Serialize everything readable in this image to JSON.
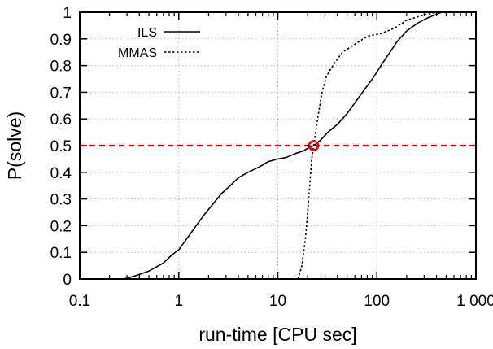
{
  "chart_data": {
    "type": "line",
    "title": "",
    "xlabel": "run-time [CPU sec]",
    "ylabel": "P(solve)",
    "x_scale": "log",
    "xlim": [
      0.1,
      1000
    ],
    "ylim": [
      0,
      1
    ],
    "grid": true,
    "legend_position": "top-left",
    "x_ticks": [
      {
        "value": 0.1,
        "label": "0.1"
      },
      {
        "value": 1,
        "label": "1"
      },
      {
        "value": 10,
        "label": "10"
      },
      {
        "value": 100,
        "label": "100"
      },
      {
        "value": 1000,
        "label": "1 000"
      }
    ],
    "y_ticks": [
      {
        "value": 0,
        "label": "0"
      },
      {
        "value": 0.1,
        "label": "0.1"
      },
      {
        "value": 0.2,
        "label": "0.2"
      },
      {
        "value": 0.3,
        "label": "0.3"
      },
      {
        "value": 0.4,
        "label": "0.4"
      },
      {
        "value": 0.5,
        "label": "0.5"
      },
      {
        "value": 0.6,
        "label": "0.6"
      },
      {
        "value": 0.7,
        "label": "0.7"
      },
      {
        "value": 0.8,
        "label": "0.8"
      },
      {
        "value": 0.9,
        "label": "0.9"
      },
      {
        "value": 1,
        "label": "1"
      }
    ],
    "series": [
      {
        "name": "ILS",
        "style": "solid",
        "color": "#000000",
        "points": [
          [
            0.28,
            0
          ],
          [
            0.35,
            0.01
          ],
          [
            0.5,
            0.03
          ],
          [
            0.7,
            0.06
          ],
          [
            0.85,
            0.09
          ],
          [
            1.0,
            0.11
          ],
          [
            1.2,
            0.15
          ],
          [
            1.5,
            0.2
          ],
          [
            1.8,
            0.24
          ],
          [
            2.2,
            0.28
          ],
          [
            2.7,
            0.32
          ],
          [
            3.3,
            0.35
          ],
          [
            4.0,
            0.38
          ],
          [
            5.0,
            0.4
          ],
          [
            6.5,
            0.42
          ],
          [
            8.0,
            0.44
          ],
          [
            10.0,
            0.45
          ],
          [
            12.0,
            0.455
          ],
          [
            15.0,
            0.47
          ],
          [
            18.0,
            0.48
          ],
          [
            20.0,
            0.49
          ],
          [
            23.0,
            0.5
          ],
          [
            27.0,
            0.52
          ],
          [
            32.0,
            0.55
          ],
          [
            40.0,
            0.58
          ],
          [
            50.0,
            0.62
          ],
          [
            60.0,
            0.66
          ],
          [
            75.0,
            0.71
          ],
          [
            90.0,
            0.75
          ],
          [
            110.0,
            0.8
          ],
          [
            130.0,
            0.84
          ],
          [
            160.0,
            0.89
          ],
          [
            200.0,
            0.93
          ],
          [
            260.0,
            0.96
          ],
          [
            330.0,
            0.98
          ],
          [
            450.0,
            1.0
          ],
          [
            1000.0,
            1.0
          ]
        ]
      },
      {
        "name": "MMAS",
        "style": "dashed",
        "color": "#000000",
        "points": [
          [
            16.0,
            0
          ],
          [
            17.5,
            0.05
          ],
          [
            19.0,
            0.15
          ],
          [
            20.0,
            0.25
          ],
          [
            21.0,
            0.35
          ],
          [
            22.0,
            0.45
          ],
          [
            23.0,
            0.5
          ],
          [
            24.5,
            0.57
          ],
          [
            26.0,
            0.63
          ],
          [
            28.0,
            0.7
          ],
          [
            31.0,
            0.76
          ],
          [
            36.0,
            0.8
          ],
          [
            45.0,
            0.85
          ],
          [
            60.0,
            0.88
          ],
          [
            80.0,
            0.91
          ],
          [
            110.0,
            0.92
          ],
          [
            150.0,
            0.94
          ],
          [
            200.0,
            0.97
          ],
          [
            300.0,
            0.99
          ],
          [
            400.0,
            1.0
          ],
          [
            1000.0,
            1.0
          ]
        ]
      }
    ],
    "annotations": {
      "reference_line": {
        "y": 0.5,
        "color": "#e8000b",
        "style": "dashed"
      },
      "intersection_marker": {
        "x": 23,
        "y": 0.5,
        "color": "#e8000b",
        "shape": "circle"
      }
    }
  }
}
